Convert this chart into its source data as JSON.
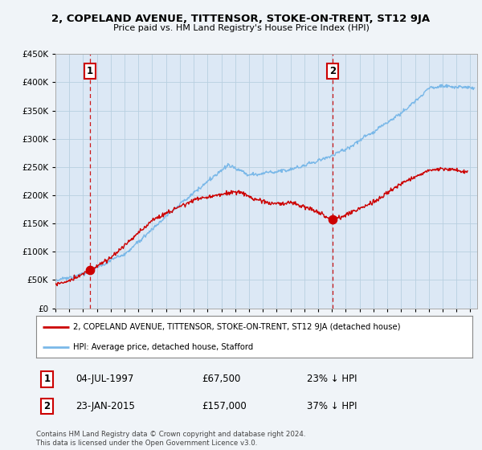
{
  "title": "2, COPELAND AVENUE, TITTENSOR, STOKE-ON-TRENT, ST12 9JA",
  "subtitle": "Price paid vs. HM Land Registry's House Price Index (HPI)",
  "legend_line1": "2, COPELAND AVENUE, TITTENSOR, STOKE-ON-TRENT, ST12 9JA (detached house)",
  "legend_line2": "HPI: Average price, detached house, Stafford",
  "point1_label": "1",
  "point1_date": "04-JUL-1997",
  "point1_price": "£67,500",
  "point1_hpi": "23% ↓ HPI",
  "point1_year": 1997.5,
  "point1_value": 67500,
  "point2_label": "2",
  "point2_date": "23-JAN-2015",
  "point2_price": "£157,000",
  "point2_hpi": "37% ↓ HPI",
  "point2_year": 2015.05,
  "point2_value": 157000,
  "copyright": "Contains HM Land Registry data © Crown copyright and database right 2024.\nThis data is licensed under the Open Government Licence v3.0.",
  "hpi_color": "#7ab8e8",
  "price_color": "#cc0000",
  "dashed_color": "#cc0000",
  "bg_color": "#f0f4f8",
  "plot_bg": "#dce8f5",
  "grid_color": "#b8cfe0",
  "ylim_min": 0,
  "ylim_max": 450000,
  "xlim_min": 1995.0,
  "xlim_max": 2025.5
}
